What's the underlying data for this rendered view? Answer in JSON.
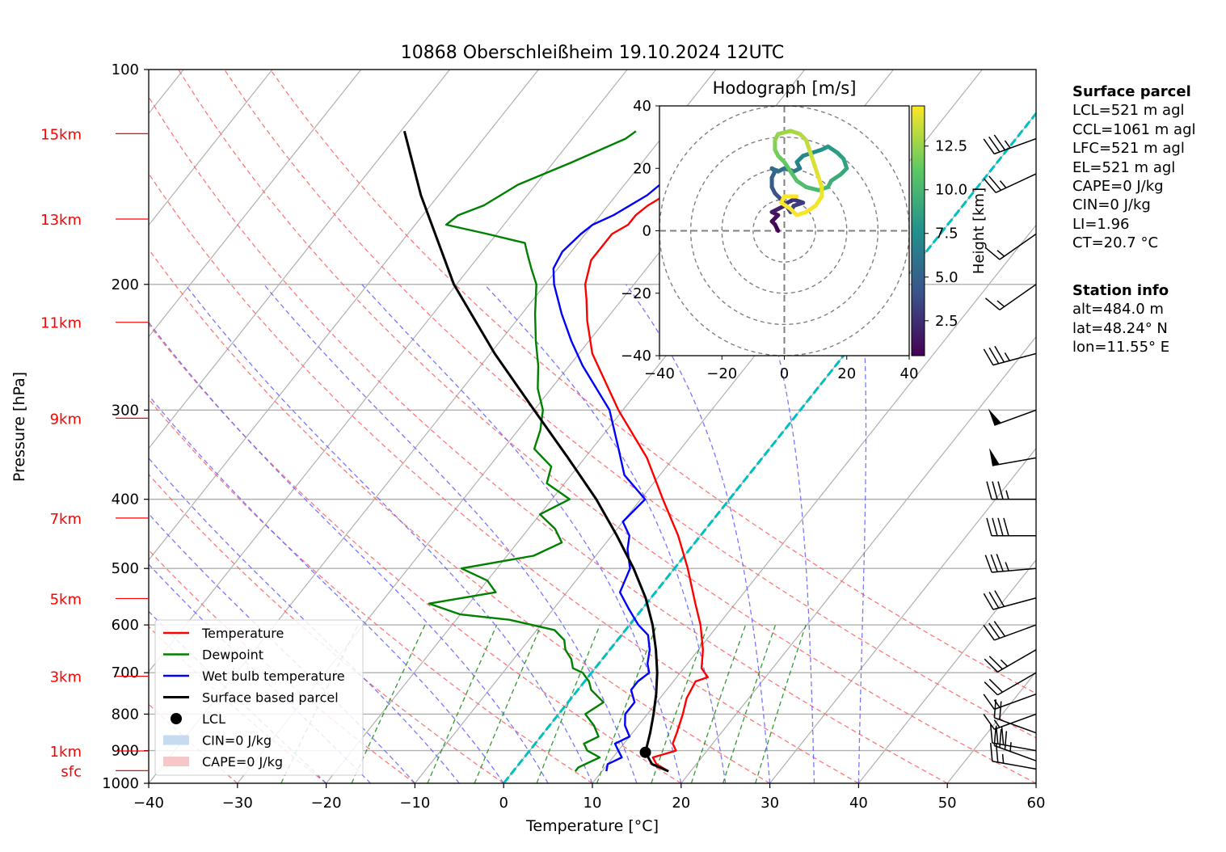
{
  "title": "10868 Oberschleißheim 19.10.2024 12UTC",
  "chart_data": {
    "type": "line",
    "subtype": "skew-T log-P diagram",
    "xlabel": "Temperature [°C]",
    "ylabel": "Pressure [hPa]",
    "xlim": [
      -40,
      60
    ],
    "ylim": [
      1000,
      100
    ],
    "y_scale": "log",
    "x_ticks": [
      "−40",
      "−30",
      "−20",
      "−10",
      "0",
      "10",
      "20",
      "30",
      "40",
      "50",
      "60"
    ],
    "x_tick_values": [
      -40,
      -30,
      -20,
      -10,
      0,
      10,
      20,
      30,
      40,
      50,
      60
    ],
    "y_ticks": [
      "100",
      "200",
      "300",
      "400",
      "500",
      "600",
      "700",
      "800",
      "900",
      "1000"
    ],
    "y_tick_values": [
      100,
      200,
      300,
      400,
      500,
      600,
      700,
      800,
      900,
      1000
    ],
    "height_labels": [
      {
        "label": "15km",
        "p": 123
      },
      {
        "label": "13km",
        "p": 162
      },
      {
        "label": "11km",
        "p": 226
      },
      {
        "label": "9km",
        "p": 308
      },
      {
        "label": "7km",
        "p": 425
      },
      {
        "label": "5km",
        "p": 551
      },
      {
        "label": "3km",
        "p": 708
      },
      {
        "label": "1km",
        "p": 901
      },
      {
        "label": "sfc",
        "p": 960
      }
    ],
    "grid": true,
    "legend_position": "lower-left",
    "series": [
      {
        "name": "Temperature",
        "color": "#ff0000",
        "points": [
          [
            962,
            17.5
          ],
          [
            940,
            15.5
          ],
          [
            920,
            14.5
          ],
          [
            900,
            16.5
          ],
          [
            880,
            15.5
          ],
          [
            850,
            15.0
          ],
          [
            800,
            14.0
          ],
          [
            760,
            13.0
          ],
          [
            720,
            12.5
          ],
          [
            710,
            13.5
          ],
          [
            690,
            12.0
          ],
          [
            650,
            10.5
          ],
          [
            600,
            8.0
          ],
          [
            560,
            5.5
          ],
          [
            500,
            1.5
          ],
          [
            450,
            -2.5
          ],
          [
            400,
            -7.5
          ],
          [
            350,
            -13.0
          ],
          [
            300,
            -20.5
          ],
          [
            250,
            -28.5
          ],
          [
            225,
            -32.0
          ],
          [
            210,
            -34.0
          ],
          [
            200,
            -35.5
          ],
          [
            185,
            -37.0
          ],
          [
            170,
            -37.0
          ],
          [
            165,
            -36.0
          ],
          [
            160,
            -36.0
          ],
          [
            155,
            -35.5
          ],
          [
            150,
            -34.5
          ],
          [
            145,
            -34.5
          ],
          [
            140,
            -34.5
          ],
          [
            130,
            -33.0
          ],
          [
            125,
            -31.0
          ],
          [
            122,
            -29.0
          ]
        ]
      },
      {
        "name": "Dewpoint",
        "color": "#008000",
        "points": [
          [
            962,
            7.0
          ],
          [
            950,
            7.0
          ],
          [
            920,
            8.5
          ],
          [
            900,
            6.5
          ],
          [
            880,
            5.5
          ],
          [
            860,
            6.5
          ],
          [
            830,
            5.0
          ],
          [
            800,
            3.0
          ],
          [
            770,
            4.0
          ],
          [
            740,
            1.5
          ],
          [
            720,
            0.5
          ],
          [
            700,
            -1.0
          ],
          [
            690,
            -2.5
          ],
          [
            670,
            -3.5
          ],
          [
            650,
            -5.0
          ],
          [
            630,
            -6.0
          ],
          [
            610,
            -8.0
          ],
          [
            590,
            -14.0
          ],
          [
            580,
            -20.0
          ],
          [
            560,
            -24.5
          ],
          [
            540,
            -18.0
          ],
          [
            520,
            -20.0
          ],
          [
            500,
            -24.0
          ],
          [
            480,
            -17.0
          ],
          [
            460,
            -15.0
          ],
          [
            440,
            -17.0
          ],
          [
            420,
            -20.0
          ],
          [
            400,
            -18.0
          ],
          [
            380,
            -22.0
          ],
          [
            360,
            -23.0
          ],
          [
            340,
            -26.5
          ],
          [
            320,
            -27.5
          ],
          [
            300,
            -29.0
          ],
          [
            280,
            -31.5
          ],
          [
            260,
            -33.5
          ],
          [
            240,
            -36.0
          ],
          [
            220,
            -38.5
          ],
          [
            200,
            -41.0
          ],
          [
            190,
            -43.0
          ],
          [
            180,
            -45.0
          ],
          [
            175,
            -46.0
          ],
          [
            170,
            -51.0
          ],
          [
            165,
            -56.5
          ],
          [
            160,
            -56.0
          ],
          [
            155,
            -54.0
          ],
          [
            145,
            -52.0
          ],
          [
            135,
            -48.0
          ],
          [
            125,
            -44.0
          ],
          [
            122,
            -43.5
          ]
        ]
      },
      {
        "name": "Wet bulb temperature",
        "color": "#0000ff",
        "points": [
          [
            962,
            10.5
          ],
          [
            940,
            10.0
          ],
          [
            920,
            11.0
          ],
          [
            900,
            10.0
          ],
          [
            880,
            9.0
          ],
          [
            860,
            10.0
          ],
          [
            830,
            8.5
          ],
          [
            800,
            7.5
          ],
          [
            770,
            7.5
          ],
          [
            740,
            6.0
          ],
          [
            720,
            6.0
          ],
          [
            700,
            6.5
          ],
          [
            680,
            5.5
          ],
          [
            650,
            4.5
          ],
          [
            620,
            3.0
          ],
          [
            600,
            1.0
          ],
          [
            570,
            -1.5
          ],
          [
            540,
            -4.0
          ],
          [
            500,
            -5.0
          ],
          [
            470,
            -7.0
          ],
          [
            450,
            -8.0
          ],
          [
            430,
            -10.0
          ],
          [
            400,
            -9.5
          ],
          [
            370,
            -14.0
          ],
          [
            340,
            -17.0
          ],
          [
            300,
            -21.5
          ],
          [
            260,
            -28.5
          ],
          [
            240,
            -32.0
          ],
          [
            220,
            -35.5
          ],
          [
            200,
            -39.0
          ],
          [
            190,
            -40.5
          ],
          [
            180,
            -41.0
          ],
          [
            170,
            -40.5
          ],
          [
            165,
            -40.0
          ],
          [
            160,
            -38.5
          ],
          [
            150,
            -36.5
          ],
          [
            140,
            -35.5
          ],
          [
            130,
            -33.5
          ],
          [
            125,
            -31.5
          ],
          [
            122,
            -29.5
          ]
        ]
      },
      {
        "name": "Surface based parcel",
        "color": "#000000",
        "points": [
          [
            962,
            17.5
          ],
          [
            940,
            15.0
          ],
          [
            905,
            13.2
          ],
          [
            850,
            12.0
          ],
          [
            800,
            10.7
          ],
          [
            750,
            9.2
          ],
          [
            700,
            7.4
          ],
          [
            650,
            5.2
          ],
          [
            600,
            2.6
          ],
          [
            550,
            -0.6
          ],
          [
            500,
            -4.6
          ],
          [
            450,
            -9.4
          ],
          [
            400,
            -15.0
          ],
          [
            350,
            -21.9
          ],
          [
            300,
            -30.0
          ],
          [
            250,
            -39.5
          ],
          [
            200,
            -50.3
          ],
          [
            150,
            -62.0
          ],
          [
            122,
            -69.6
          ]
        ]
      }
    ],
    "lcl_point": {
      "name": "LCL",
      "p": 905,
      "t": 13.2
    },
    "cin_label": "CIN=0 J/kg",
    "cape_label": "CAPE=0 J/kg",
    "dry_adiabats": [
      -30,
      -20,
      -10,
      0,
      10,
      20,
      30,
      40,
      50,
      60,
      70,
      80
    ],
    "moist_adiabats": [
      -20,
      -15,
      -10,
      -5,
      0,
      5,
      10,
      15,
      20,
      25,
      30,
      35,
      40
    ],
    "mixing_ratio_lines": [
      0.5,
      1,
      2,
      3,
      5,
      8,
      12,
      16,
      20,
      25
    ],
    "freezing_line_color": "#00bfbf",
    "wind_barbs": [
      {
        "p": 955,
        "spd": 25,
        "dir": 280
      },
      {
        "p": 930,
        "spd": 35,
        "dir": 290
      },
      {
        "p": 900,
        "spd": 30,
        "dir": 280
      },
      {
        "p": 850,
        "spd": 20,
        "dir": 290
      },
      {
        "p": 800,
        "spd": 15,
        "dir": 250
      },
      {
        "p": 750,
        "spd": 15,
        "dir": 250
      },
      {
        "p": 700,
        "spd": 20,
        "dir": 240
      },
      {
        "p": 650,
        "spd": 25,
        "dir": 240
      },
      {
        "p": 600,
        "spd": 30,
        "dir": 250
      },
      {
        "p": 550,
        "spd": 30,
        "dir": 255
      },
      {
        "p": 500,
        "spd": 35,
        "dir": 265
      },
      {
        "p": 450,
        "spd": 40,
        "dir": 270
      },
      {
        "p": 400,
        "spd": 35,
        "dir": 270
      },
      {
        "p": 350,
        "spd": 50,
        "dir": 260
      },
      {
        "p": 300,
        "spd": 50,
        "dir": 250
      },
      {
        "p": 250,
        "spd": 35,
        "dir": 255
      },
      {
        "p": 200,
        "spd": 15,
        "dir": 235
      },
      {
        "p": 170,
        "spd": 15,
        "dir": 235
      },
      {
        "p": 140,
        "spd": 25,
        "dir": 245
      },
      {
        "p": 125,
        "spd": 35,
        "dir": 250
      }
    ],
    "hodograph": {
      "title": "Hodograph [m/s]",
      "xlim": [
        -40,
        40
      ],
      "ylim": [
        -40,
        40
      ],
      "ticks": [
        "−40",
        "−20",
        "0",
        "20",
        "40"
      ],
      "tick_values": [
        -40,
        -20,
        0,
        20,
        40
      ],
      "rings": [
        10,
        20,
        30,
        40
      ],
      "colorbar_label": "Height [km]",
      "colorbar_ticks": [
        "2.5",
        "5.0",
        "7.5",
        "10.0",
        "12.5"
      ],
      "colorbar_tick_values": [
        2.5,
        5.0,
        7.5,
        10.0,
        12.5
      ],
      "colorbar_range": [
        0.5,
        14.8
      ],
      "points": [
        [
          -2,
          0,
          0.5
        ],
        [
          -3,
          2,
          0.8
        ],
        [
          -4,
          3,
          1.0
        ],
        [
          -2,
          5,
          1.3
        ],
        [
          -4,
          6,
          1.6
        ],
        [
          -2,
          7,
          1.9
        ],
        [
          0,
          8,
          2.2
        ],
        [
          1,
          9,
          2.5
        ],
        [
          3,
          10,
          2.8
        ],
        [
          6,
          9,
          3.1
        ],
        [
          3,
          8,
          3.4
        ],
        [
          2,
          6,
          3.7
        ],
        [
          0,
          9,
          4.0
        ],
        [
          -3,
          12,
          4.3
        ],
        [
          -4,
          14,
          4.6
        ],
        [
          -4,
          17,
          4.9
        ],
        [
          -3,
          19,
          5.2
        ],
        [
          -4,
          20,
          5.5
        ],
        [
          -2,
          19,
          5.8
        ],
        [
          0,
          20,
          6.0
        ],
        [
          3,
          19,
          6.3
        ],
        [
          5,
          20,
          6.6
        ],
        [
          4,
          22,
          6.9
        ],
        [
          6,
          24,
          7.2
        ],
        [
          9,
          25,
          7.5
        ],
        [
          12,
          26,
          7.8
        ],
        [
          14,
          27,
          8.1
        ],
        [
          17,
          25,
          8.4
        ],
        [
          19,
          23,
          8.7
        ],
        [
          20,
          20,
          9.0
        ],
        [
          18,
          18,
          9.3
        ],
        [
          15,
          16,
          9.6
        ],
        [
          14,
          14,
          9.9
        ],
        [
          11,
          13,
          10.2
        ],
        [
          7,
          14,
          10.5
        ],
        [
          4,
          16,
          10.8
        ],
        [
          2,
          19,
          11.1
        ],
        [
          0,
          22,
          11.4
        ],
        [
          -2,
          24,
          11.7
        ],
        [
          -3,
          26,
          12.0
        ],
        [
          -3,
          29,
          12.3
        ],
        [
          -2,
          31,
          12.6
        ],
        [
          2,
          32,
          12.9
        ],
        [
          5,
          31,
          13.2
        ],
        [
          7,
          29,
          13.4
        ],
        [
          8,
          26,
          13.7
        ],
        [
          9,
          23,
          13.9
        ],
        [
          10,
          20,
          14.1
        ],
        [
          11,
          17,
          14.3
        ],
        [
          12,
          14,
          14.4
        ],
        [
          12,
          11,
          14.5
        ],
        [
          10,
          8,
          14.6
        ],
        [
          7,
          6,
          14.65
        ],
        [
          4,
          5,
          14.7
        ],
        [
          2,
          7,
          14.72
        ],
        [
          -1,
          9,
          14.75
        ],
        [
          0,
          11,
          14.78
        ],
        [
          4,
          11,
          14.8
        ]
      ]
    }
  },
  "legend": {
    "items": [
      {
        "label": "Temperature",
        "color": "#ff0000",
        "kind": "line"
      },
      {
        "label": "Dewpoint",
        "color": "#008000",
        "kind": "line"
      },
      {
        "label": "Wet bulb temperature",
        "color": "#0000ff",
        "kind": "line"
      },
      {
        "label": "Surface based parcel",
        "color": "#000000",
        "kind": "line"
      },
      {
        "label": "LCL",
        "color": "#000000",
        "kind": "dot"
      },
      {
        "label": "CIN=0 J/kg",
        "color": "#c6dbef",
        "kind": "patch"
      },
      {
        "label": "CAPE=0 J/kg",
        "color": "#f7c6c6",
        "kind": "patch"
      }
    ]
  },
  "surface_parcel": {
    "heading": "Surface parcel",
    "lines": [
      "LCL=521 m agl",
      "CCL=1061 m agl",
      "LFC=521 m agl",
      "EL=521 m agl",
      "CAPE=0 J/kg",
      "CIN=0 J/kg",
      "LI=1.96",
      "CT=20.7 °C"
    ]
  },
  "station_info": {
    "heading": "Station info",
    "lines": [
      "alt=484.0 m",
      "lat=48.24° N",
      "lon=11.55° E"
    ]
  }
}
